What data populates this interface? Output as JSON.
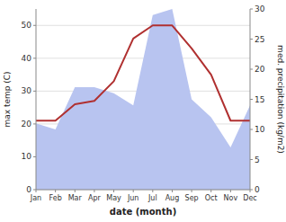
{
  "chart_data": {
    "type": "line",
    "xlabel": "date (month)",
    "ylabel": "max temp (C)",
    "y2label": "med. precipitation (kg/m2)",
    "categories": [
      "Jan",
      "Feb",
      "Mar",
      "Apr",
      "May",
      "Jun",
      "Jul",
      "Aug",
      "Sep",
      "Oct",
      "Nov",
      "Dec"
    ],
    "series": [
      {
        "type": "area",
        "axis": "y2",
        "color": "#b8c4f0",
        "values": [
          11,
          10,
          17,
          17,
          16,
          14,
          29,
          30,
          15,
          12,
          7,
          14
        ]
      },
      {
        "type": "line",
        "color": "#b03030",
        "values": [
          21,
          21,
          26,
          27,
          33,
          46,
          50,
          50,
          43,
          35,
          21,
          21
        ]
      }
    ],
    "ylim": [
      0,
      55
    ],
    "yticks": [
      0,
      10,
      20,
      30,
      40,
      50
    ],
    "y2lim": [
      0,
      30
    ],
    "y2ticks": [
      0,
      5,
      10,
      15,
      20,
      25,
      30
    ],
    "grid": true
  }
}
